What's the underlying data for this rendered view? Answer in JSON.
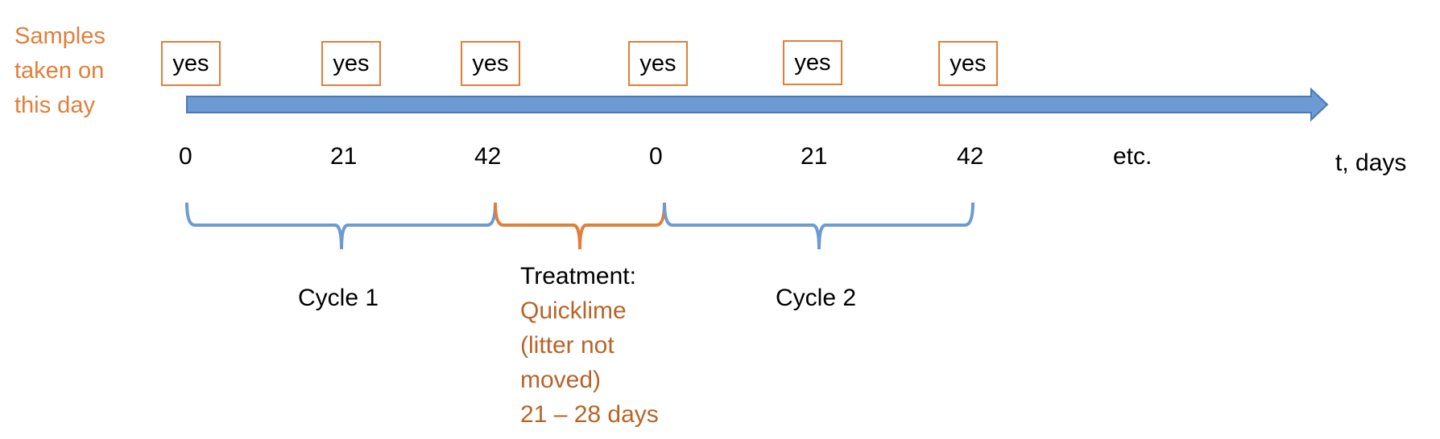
{
  "side_label": [
    "Samples",
    "taken on",
    "this day"
  ],
  "sample_boxes": [
    "yes",
    "yes",
    "yes",
    "yes",
    "yes",
    "yes"
  ],
  "axis_ticks": [
    "0",
    "21",
    "42",
    "0",
    "21",
    "42",
    "etc."
  ],
  "axis_unit": "t, days",
  "cycle_labels": [
    "Cycle 1",
    "Cycle 2"
  ],
  "treatment": {
    "heading": "Treatment:",
    "lines": [
      "Quicklime",
      "(litter not",
      "moved)",
      "21 – 28 days"
    ]
  },
  "colors": {
    "arrow": "#6b9bd2",
    "arrow_border": "#4a7ab5",
    "sample_box": "#e07f3a",
    "side_label": "#e07f3a",
    "cycle_brace": "#6b9bd2",
    "treatment_brace": "#e07f3a",
    "treatment_text": "#b86428"
  }
}
